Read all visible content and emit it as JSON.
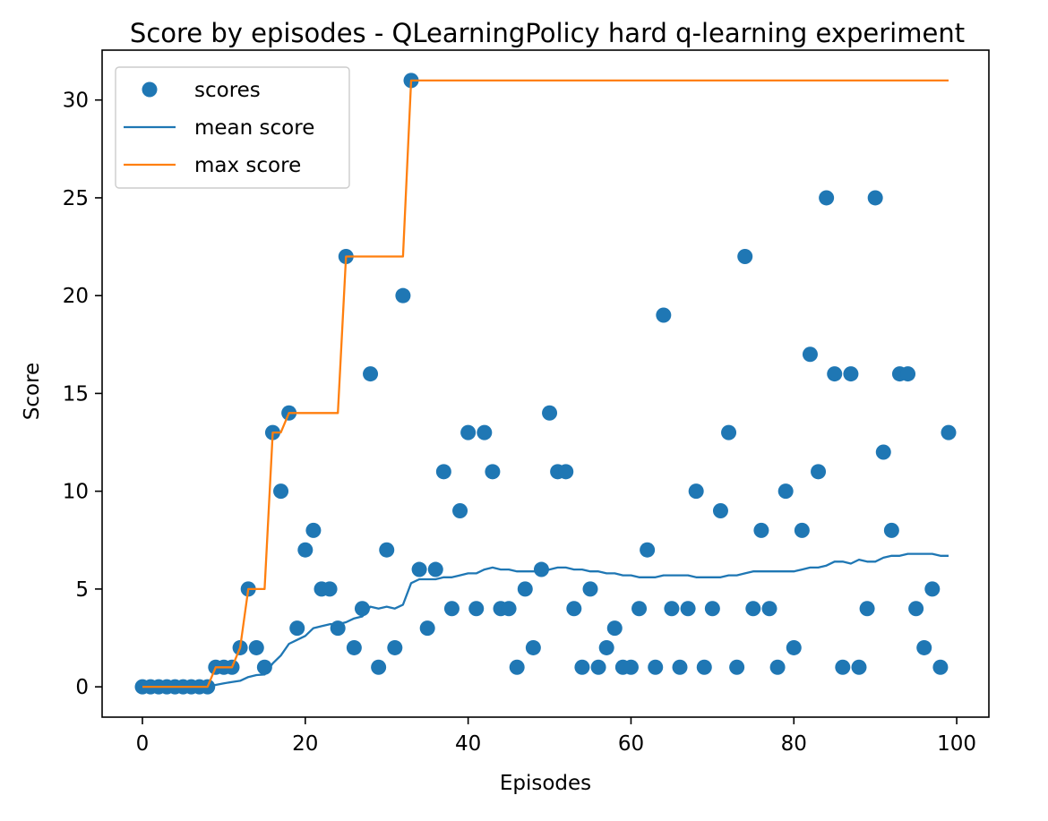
{
  "chart_data": {
    "type": "scatter",
    "title": "Score by episodes - QLearningPolicy hard q-learning experiment",
    "xlabel": "Episodes",
    "ylabel": "Score",
    "xlim": [
      -4.95,
      103.95
    ],
    "ylim": [
      -1.55,
      32.55
    ],
    "xticks": [
      0,
      20,
      40,
      60,
      80,
      100
    ],
    "yticks": [
      0,
      5,
      10,
      15,
      20,
      25,
      30
    ],
    "grid": false,
    "legend_position": "upper left",
    "series": [
      {
        "name": "scores",
        "kind": "scatter",
        "color": "#1f77b4",
        "x": [
          0,
          1,
          2,
          3,
          4,
          5,
          6,
          7,
          8,
          9,
          10,
          11,
          12,
          13,
          14,
          15,
          16,
          17,
          18,
          19,
          20,
          21,
          22,
          23,
          24,
          25,
          26,
          27,
          28,
          29,
          30,
          31,
          32,
          33,
          34,
          35,
          36,
          37,
          38,
          39,
          40,
          41,
          42,
          43,
          44,
          45,
          46,
          47,
          48,
          49,
          50,
          51,
          52,
          53,
          54,
          55,
          56,
          57,
          58,
          59,
          60,
          61,
          62,
          63,
          64,
          65,
          66,
          67,
          68,
          69,
          70,
          71,
          72,
          73,
          74,
          75,
          76,
          77,
          78,
          79,
          80,
          81,
          82,
          83,
          84,
          85,
          86,
          87,
          88,
          89,
          90,
          91,
          92,
          93,
          94,
          95,
          96,
          97,
          98,
          99
        ],
        "y": [
          0,
          0,
          0,
          0,
          0,
          0,
          0,
          0,
          0,
          1,
          1,
          1,
          2,
          5,
          2,
          1,
          13,
          10,
          14,
          3,
          7,
          8,
          5,
          5,
          3,
          22,
          2,
          4,
          16,
          1,
          7,
          2,
          20,
          31,
          6,
          3,
          6,
          11,
          4,
          9,
          13,
          4,
          13,
          11,
          4,
          4,
          1,
          5,
          2,
          6,
          14,
          11,
          11,
          4,
          1,
          5,
          1,
          2,
          3,
          1,
          1,
          4,
          7,
          1,
          19,
          4,
          1,
          4,
          10,
          1,
          4,
          9,
          13,
          1,
          22,
          4,
          8,
          4,
          1,
          10,
          2,
          8,
          17,
          11,
          25,
          16,
          1,
          16,
          1,
          4,
          25,
          12,
          8,
          16,
          16,
          4,
          2,
          5,
          1,
          13
        ]
      },
      {
        "name": "mean score",
        "kind": "line",
        "color": "#1f77b4",
        "x": [
          0,
          8,
          9,
          10,
          11,
          12,
          13,
          14,
          15,
          16,
          17,
          18,
          19,
          20,
          21,
          22,
          23,
          24,
          25,
          26,
          27,
          28,
          29,
          30,
          31,
          32,
          33,
          34,
          35,
          36,
          37,
          38,
          39,
          40,
          41,
          42,
          43,
          44,
          45,
          46,
          47,
          48,
          49,
          50,
          51,
          52,
          53,
          54,
          55,
          56,
          57,
          58,
          59,
          60,
          61,
          62,
          63,
          64,
          65,
          66,
          67,
          68,
          69,
          70,
          71,
          72,
          73,
          74,
          75,
          76,
          77,
          78,
          79,
          80,
          81,
          82,
          83,
          84,
          85,
          86,
          87,
          88,
          89,
          90,
          91,
          92,
          93,
          94,
          95,
          96,
          97,
          98,
          99
        ],
        "y": [
          0,
          0,
          0.1,
          0.18,
          0.25,
          0.31,
          0.5,
          0.6,
          0.63,
          1.2,
          1.6,
          2.2,
          2.4,
          2.6,
          3.0,
          3.1,
          3.2,
          3.2,
          3.3,
          3.5,
          3.6,
          4.1,
          4.0,
          4.1,
          4.0,
          4.2,
          5.3,
          5.5,
          5.5,
          5.5,
          5.6,
          5.6,
          5.7,
          5.8,
          5.8,
          6.0,
          6.1,
          6.0,
          6.0,
          5.9,
          5.9,
          5.9,
          5.9,
          6.0,
          6.1,
          6.1,
          6.0,
          6.0,
          5.9,
          5.9,
          5.8,
          5.8,
          5.7,
          5.7,
          5.6,
          5.6,
          5.6,
          5.7,
          5.7,
          5.7,
          5.7,
          5.6,
          5.6,
          5.6,
          5.6,
          5.7,
          5.7,
          5.8,
          5.9,
          5.9,
          5.9,
          5.9,
          5.9,
          5.9,
          6.0,
          6.1,
          6.1,
          6.2,
          6.4,
          6.4,
          6.3,
          6.5,
          6.4,
          6.4,
          6.6,
          6.7,
          6.7,
          6.8,
          6.8,
          6.8,
          6.8,
          6.7,
          6.7
        ]
      },
      {
        "name": "max score",
        "kind": "step",
        "color": "#ff7f0e",
        "x": [
          0,
          8,
          9,
          11,
          12,
          13,
          15,
          16,
          17,
          18,
          24,
          25,
          32,
          33,
          99
        ],
        "y": [
          0,
          0,
          1,
          1,
          2,
          5,
          5,
          13,
          13,
          14,
          14,
          22,
          22,
          31,
          31
        ]
      }
    ]
  }
}
